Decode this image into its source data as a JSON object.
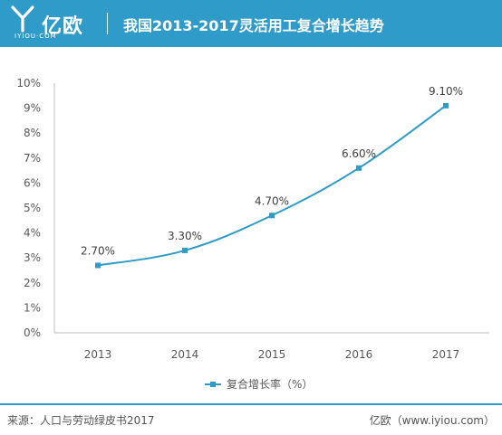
{
  "header": {
    "logo_text": "亿欧",
    "logo_sub": "IYIOU·COM",
    "title": "我国2013-2017灵活用工复合增长趋势"
  },
  "chart_data": {
    "type": "line",
    "title": "我国2013-2017灵活用工复合增长趋势",
    "categories": [
      "2013",
      "2014",
      "2015",
      "2016",
      "2017"
    ],
    "series": [
      {
        "name": "复合增长率（%）",
        "values": [
          2.7,
          3.3,
          4.7,
          6.6,
          9.1
        ],
        "labels": [
          "2.70%",
          "3.30%",
          "4.70%",
          "6.60%",
          "9.10%"
        ]
      }
    ],
    "yticks": [
      "0%",
      "1%",
      "2%",
      "3%",
      "4%",
      "5%",
      "6%",
      "7%",
      "8%",
      "9%",
      "10%"
    ],
    "ylim": [
      0,
      10
    ],
    "xlabel": "",
    "ylabel": "",
    "legend_position": "bottom",
    "line_color": "#2f9bc9",
    "grid": false
  },
  "footer": {
    "source": "来源：人口与劳动绿皮书2017",
    "brand": "亿欧（www.iyiou.com）"
  }
}
